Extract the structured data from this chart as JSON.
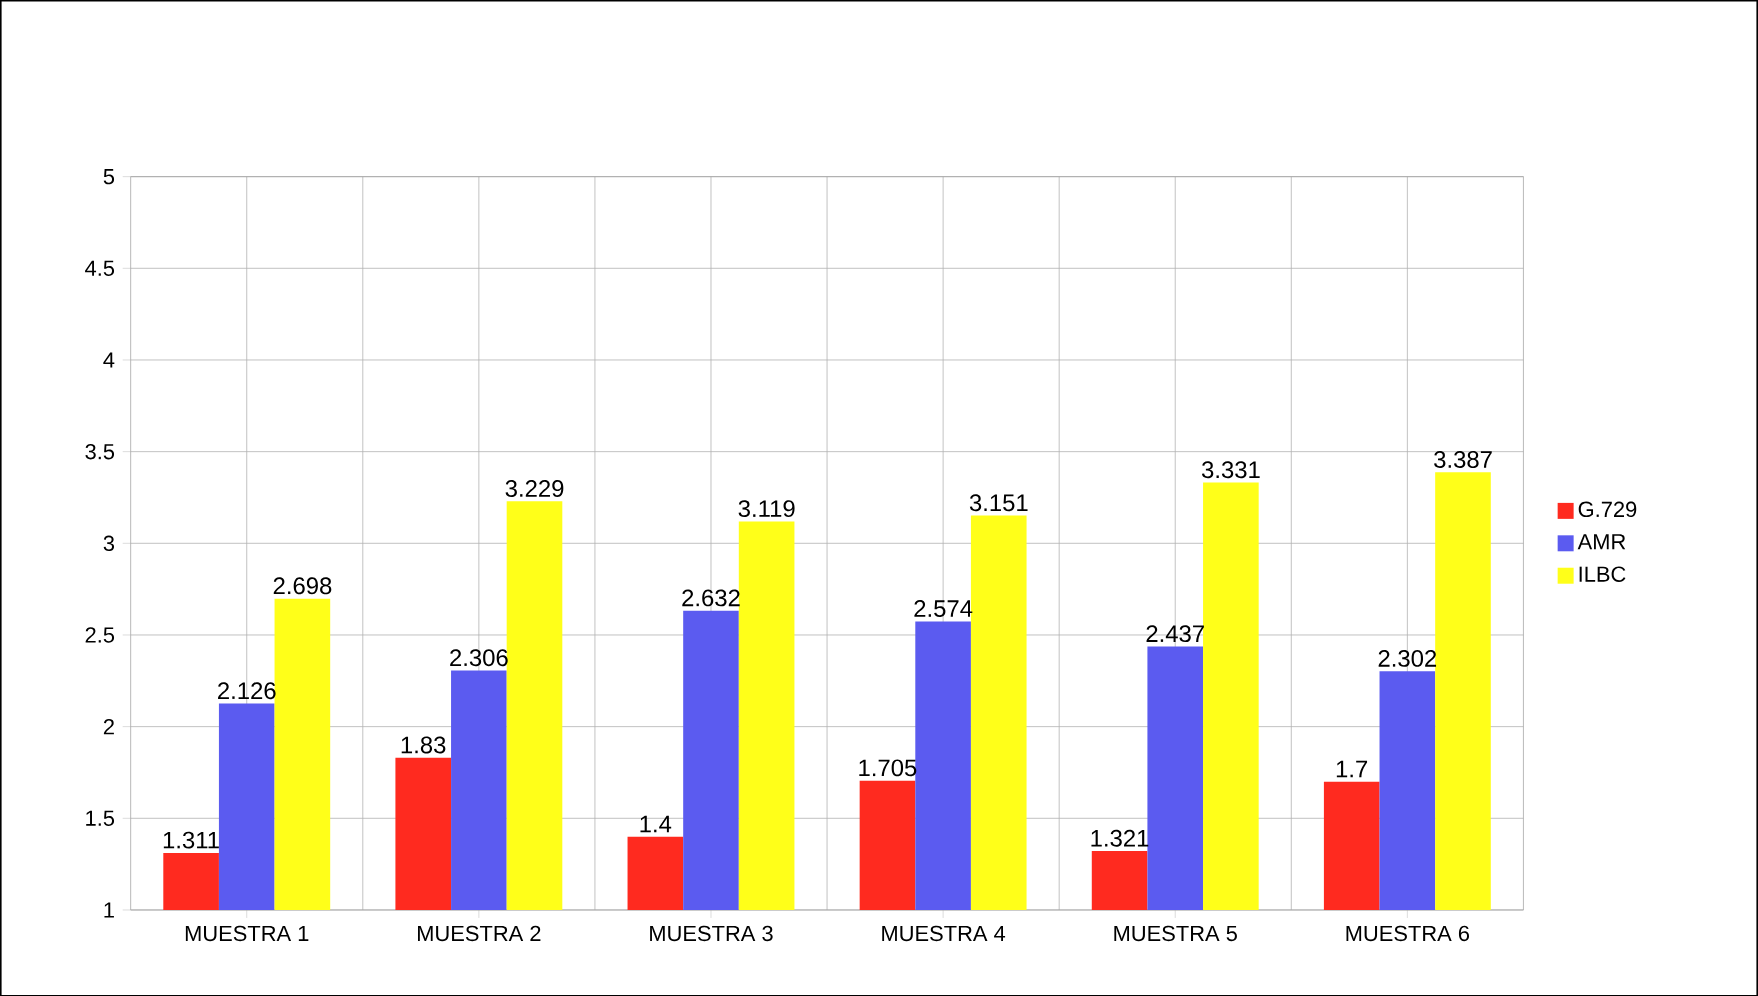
{
  "chart_data": {
    "type": "bar",
    "categories": [
      "MUESTRA 1",
      "MUESTRA 2",
      "MUESTRA 3",
      "MUESTRA 4",
      "MUESTRA 5",
      "MUESTRA 6"
    ],
    "series": [
      {
        "name": "G.729",
        "color": "#ff2a1f",
        "values": [
          1.311,
          1.83,
          1.4,
          1.705,
          1.321,
          1.7
        ]
      },
      {
        "name": "AMR",
        "color": "#5b5bf0",
        "values": [
          2.126,
          2.306,
          2.632,
          2.574,
          2.437,
          2.302
        ]
      },
      {
        "name": "ILBC",
        "color": "#ffff19",
        "values": [
          2.698,
          3.229,
          3.119,
          3.151,
          3.331,
          3.387
        ]
      }
    ],
    "ylim": [
      1,
      5
    ],
    "yticks": [
      1,
      1.5,
      2,
      2.5,
      3,
      3.5,
      4,
      4.5,
      5
    ],
    "grid": true,
    "legend": "right",
    "data_labels": true
  }
}
